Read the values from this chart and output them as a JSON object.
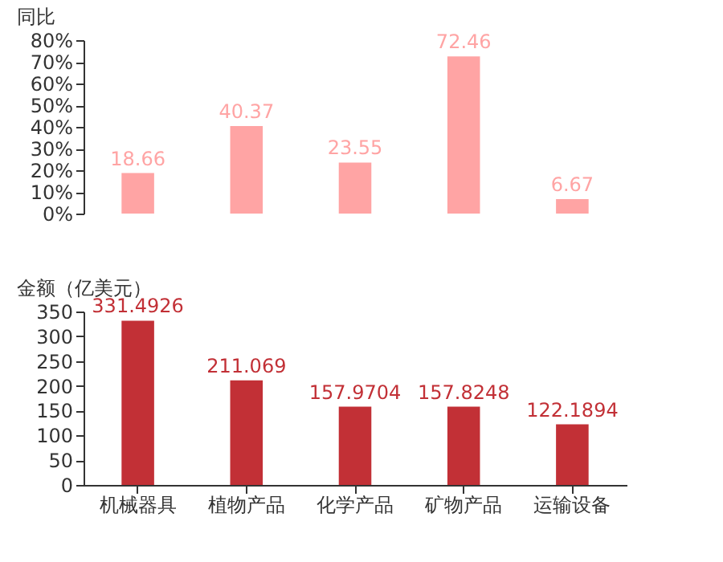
{
  "chart_data": [
    {
      "type": "bar",
      "ylabel": "同比",
      "categories": [
        null,
        null,
        null,
        null,
        null
      ],
      "values": [
        18.66,
        40.37,
        23.55,
        72.46,
        6.67
      ],
      "color": "#ffa4a4",
      "data_labels": true,
      "ylim": [
        0,
        80
      ],
      "yticks": [
        {
          "value": 0,
          "label": "0%"
        },
        {
          "value": 10,
          "label": "10%"
        },
        {
          "value": 20,
          "label": "20%"
        },
        {
          "value": 30,
          "label": "30%"
        },
        {
          "value": 40,
          "label": "40%"
        },
        {
          "value": 50,
          "label": "50%"
        },
        {
          "value": 60,
          "label": "60%"
        },
        {
          "value": 70,
          "label": "70%"
        },
        {
          "value": 80,
          "label": "80%"
        }
      ],
      "tick_labels": "y",
      "grid": false
    },
    {
      "type": "bar",
      "ylabel": "金额（亿美元）",
      "categories": [
        "机械器具",
        "植物产品",
        "化学产品",
        "矿物产品",
        "运输设备"
      ],
      "values": [
        331.4926,
        211.069,
        157.9704,
        157.8248,
        122.1894
      ],
      "color": "#c23036",
      "data_labels": true,
      "ylim": [
        0,
        350
      ],
      "yticks": [
        0,
        50,
        100,
        150,
        200,
        250,
        300,
        350
      ],
      "grid": false
    }
  ]
}
